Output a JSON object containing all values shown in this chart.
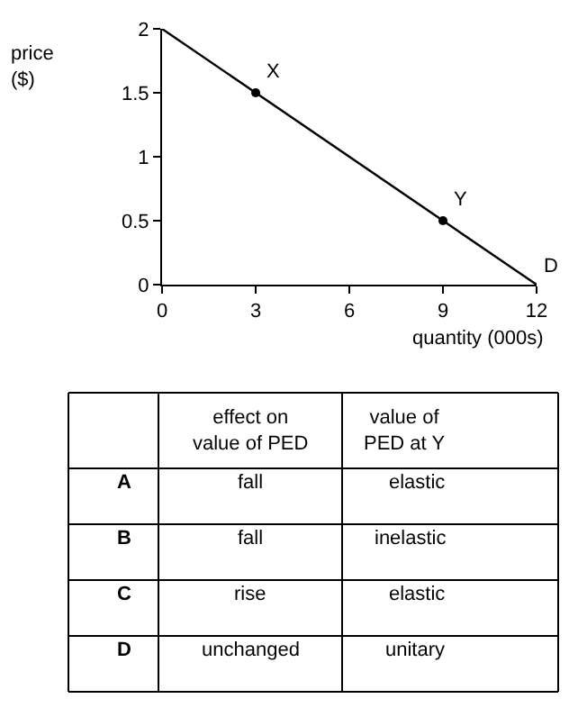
{
  "chart_data": [
    {
      "type": "line",
      "ylabel": "price\n($)",
      "xlabel": "quantity (000s)",
      "xlim": [
        0,
        12
      ],
      "ylim": [
        0,
        2
      ],
      "xticks": [
        0,
        3,
        6,
        9,
        12
      ],
      "yticks": [
        0,
        0.5,
        1,
        1.5,
        2
      ],
      "series": [
        {
          "x": [
            0,
            12
          ],
          "values": [
            2,
            0
          ],
          "color": "#000000",
          "marker": "none"
        },
        {
          "type": "scatter",
          "x": [
            3,
            9
          ],
          "values": [
            1.5,
            0.5
          ],
          "color": "#000000",
          "marker": "circle"
        }
      ],
      "annotations": [
        {
          "text": "X",
          "x": 3,
          "y": 1.5
        },
        {
          "text": "Y",
          "x": 9,
          "y": 0.5
        },
        {
          "text": "D",
          "x": 12,
          "y": 0
        }
      ]
    },
    {
      "type": "other",
      "annotations": [
        "effect on\nvalue of PED",
        "value of\nPED at Y",
        "A",
        "fall",
        "elastic",
        "B",
        "fall",
        "inelastic",
        "C",
        "rise",
        "elastic",
        "D",
        "unchanged",
        "unitary"
      ]
    }
  ]
}
